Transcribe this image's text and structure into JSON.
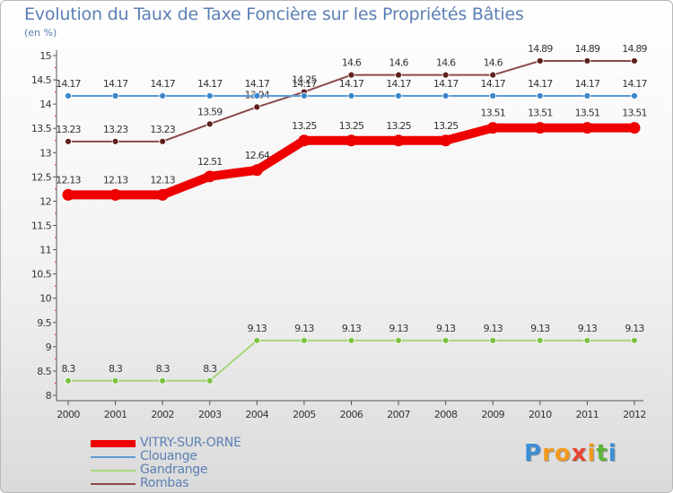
{
  "header": {
    "title": "Evolution du Taux de Taxe Foncière sur les Propriétés Bâties",
    "subtitle": "(en %)"
  },
  "chart_data": {
    "type": "line",
    "title": "Evolution du Taux de Taxe Foncière sur les Propriétés Bâties",
    "ylabel": "(en %)",
    "xlabel": "",
    "ylim": [
      8,
      15
    ],
    "y_ticks": [
      "8",
      "8.5",
      "9",
      "9.5",
      "10",
      "10.5",
      "11",
      "11.5",
      "12",
      "12.5",
      "13",
      "13.5",
      "14",
      "14.5",
      "15"
    ],
    "categories": [
      "2000",
      "2001",
      "2002",
      "2003",
      "2004",
      "2005",
      "2006",
      "2007",
      "2008",
      "2009",
      "2010",
      "2011",
      "2012"
    ],
    "grid": false,
    "legend_position": "bottom-left",
    "series": [
      {
        "name": "VITRY-SUR-ORNE",
        "color": "#ee0000",
        "marker_color": "#ee0000",
        "values": [
          12.13,
          12.13,
          12.13,
          12.51,
          12.64,
          13.25,
          13.25,
          13.25,
          13.25,
          13.51,
          13.51,
          13.51,
          13.51
        ],
        "labels": [
          "12.13",
          "12.13",
          "12.13",
          "12.51",
          "12.64",
          "13.25",
          "13.25",
          "13.25",
          "13.25",
          "13.51",
          "13.51",
          "13.51",
          "13.51"
        ]
      },
      {
        "name": "Clouange",
        "color": "#5b9bd5",
        "marker_color": "#3a86c8",
        "values": [
          14.17,
          14.17,
          14.17,
          14.17,
          14.17,
          14.17,
          14.17,
          14.17,
          14.17,
          14.17,
          14.17,
          14.17,
          14.17
        ],
        "labels": [
          "14.17",
          "14.17",
          "14.17",
          "14.17",
          "14.17",
          "14.17",
          "14.17",
          "14.17",
          "14.17",
          "14.17",
          "14.17",
          "14.17",
          "14.17"
        ]
      },
      {
        "name": "Gandrange",
        "color": "#a8d67a",
        "marker_color": "#7dc243",
        "values": [
          8.3,
          8.3,
          8.3,
          8.3,
          9.13,
          9.13,
          9.13,
          9.13,
          9.13,
          9.13,
          9.13,
          9.13,
          9.13
        ],
        "labels": [
          "8.3",
          "8.3",
          "8.3",
          "8.3",
          "9.13",
          "9.13",
          "9.13",
          "9.13",
          "9.13",
          "9.13",
          "9.13",
          "9.13",
          "9.13"
        ]
      },
      {
        "name": "Rombas",
        "color": "#8b4a4a",
        "marker_color": "#5e2020",
        "values": [
          13.23,
          13.23,
          13.23,
          13.59,
          13.94,
          14.25,
          14.6,
          14.6,
          14.6,
          14.6,
          14.89,
          14.89,
          14.89
        ],
        "labels": [
          "13.23",
          "13.23",
          "13.23",
          "13.59",
          "13.94",
          "14.25",
          "14.6",
          "14.6",
          "14.6",
          "14.6",
          "14.89",
          "14.89",
          "14.89"
        ]
      }
    ]
  },
  "legend": {
    "items": [
      {
        "label": "VITRY-SUR-ORNE",
        "color": "#ee0000"
      },
      {
        "label": "Clouange",
        "color": "#5b9bd5"
      },
      {
        "label": "Gandrange",
        "color": "#a8d67a"
      },
      {
        "label": "Rombas",
        "color": "#8b4a4a"
      }
    ]
  },
  "logo": {
    "text": "Proxiti",
    "letters": [
      "P",
      "r",
      "o",
      "x",
      "i",
      "t",
      "i"
    ],
    "colors": [
      "#3b8fd6",
      "#f39a1e",
      "#f39a1e",
      "#e8432f",
      "#f39a1e",
      "#5fb33a",
      "#3b8fd6"
    ]
  }
}
